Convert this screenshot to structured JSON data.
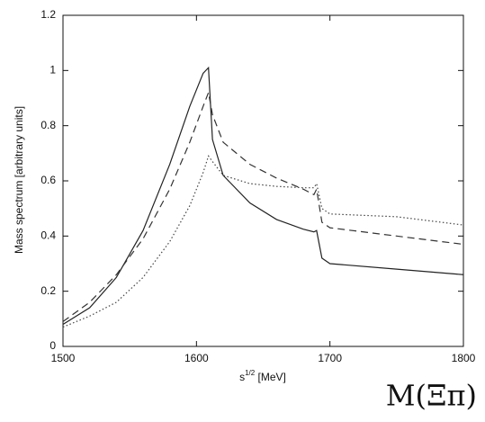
{
  "chart_data": {
    "type": "line",
    "y_label": "Mass spectrum [arbitrary units]",
    "x_label": [
      "s",
      "1/2",
      " [MeV]"
    ],
    "annotation": "M(Ξπ)",
    "x": [
      1500,
      1520,
      1540,
      1560,
      1580,
      1595,
      1605,
      1609,
      1612,
      1620,
      1640,
      1660,
      1680,
      1688,
      1690,
      1694,
      1700,
      1750,
      1800
    ],
    "series": [
      {
        "color": "#222222",
        "dash": "solid",
        "values": [
          0.08,
          0.14,
          0.25,
          0.42,
          0.66,
          0.87,
          0.99,
          1.01,
          0.75,
          0.62,
          0.52,
          0.46,
          0.425,
          0.415,
          0.42,
          0.32,
          0.3,
          0.28,
          0.26
        ]
      },
      {
        "color": "#333333",
        "dash": "dashed",
        "values": [
          0.09,
          0.16,
          0.26,
          0.39,
          0.57,
          0.74,
          0.87,
          0.92,
          0.84,
          0.74,
          0.66,
          0.61,
          0.57,
          0.55,
          0.57,
          0.45,
          0.43,
          0.4,
          0.37
        ]
      },
      {
        "color": "#444444",
        "dash": "dotted",
        "values": [
          0.07,
          0.11,
          0.16,
          0.25,
          0.38,
          0.51,
          0.63,
          0.69,
          0.67,
          0.62,
          0.59,
          0.58,
          0.575,
          0.575,
          0.59,
          0.5,
          0.48,
          0.47,
          0.44
        ]
      }
    ],
    "xlim": [
      1500,
      1800
    ],
    "xticks": [
      1500,
      1600,
      1700,
      1800
    ],
    "ylim": [
      0,
      1.2
    ],
    "yticks": [
      0,
      0.2,
      0.4,
      0.6,
      0.8,
      1,
      1.2
    ],
    "grid": false
  }
}
